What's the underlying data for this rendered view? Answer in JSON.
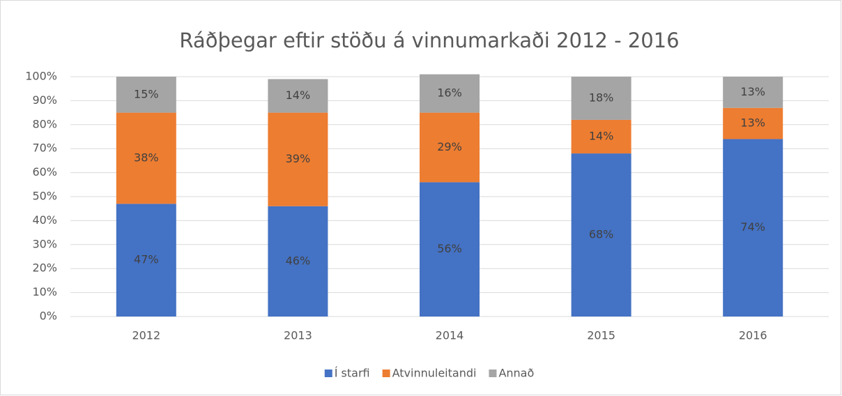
{
  "chart_data": {
    "type": "stacked_bar",
    "title": "Ráðþegar eftir stöðu á vinnumarkaði 2012 - 2016",
    "categories": [
      "2012",
      "2013",
      "2014",
      "2015",
      "2016"
    ],
    "series": [
      {
        "name": "Í starfi",
        "color": "#4472c4",
        "values": [
          47,
          46,
          56,
          68,
          74
        ],
        "value_labels": [
          "47%",
          "46%",
          "56%",
          "68%",
          "74%"
        ]
      },
      {
        "name": "Atvinnuleitandi",
        "color": "#ed7d31",
        "values": [
          38,
          39,
          29,
          14,
          13
        ],
        "value_labels": [
          "38%",
          "39%",
          "29%",
          "14%",
          "13%"
        ]
      },
      {
        "name": "Annað",
        "color": "#a5a5a5",
        "values": [
          15,
          14,
          16,
          18,
          13
        ],
        "value_labels": [
          "15%",
          "14%",
          "16%",
          "18%",
          "13%"
        ]
      }
    ],
    "ylim": [
      0,
      100
    ],
    "yticks": [
      {
        "value": 0,
        "label": "0%"
      },
      {
        "value": 10,
        "label": "10%"
      },
      {
        "value": 20,
        "label": "20%"
      },
      {
        "value": 30,
        "label": "30%"
      },
      {
        "value": 40,
        "label": "40%"
      },
      {
        "value": 50,
        "label": "50%"
      },
      {
        "value": 60,
        "label": "60%"
      },
      {
        "value": 70,
        "label": "70%"
      },
      {
        "value": 80,
        "label": "80%"
      },
      {
        "value": 90,
        "label": "90%"
      },
      {
        "value": 100,
        "label": "100%"
      }
    ],
    "grid": true,
    "legend": "bottom"
  }
}
